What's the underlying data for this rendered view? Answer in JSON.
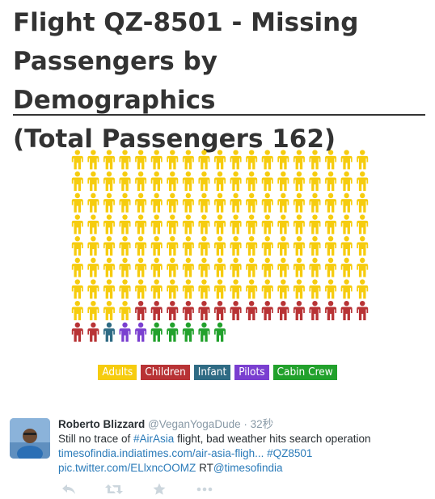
{
  "header": {
    "title_line1": "Flight QZ-8501 - Missing",
    "title_line2": "Passengers by Demographics",
    "title_line3": "(Total Passengers 162)"
  },
  "chart_data": {
    "type": "table",
    "categories": [
      "Adults",
      "Children",
      "Infant",
      "Pilots",
      "Cabin Crew"
    ],
    "values": [
      137,
      17,
      1,
      2,
      5
    ],
    "colors": [
      "#f6cc0e",
      "#b83335",
      "#2f6b84",
      "#7a3fd0",
      "#22a12c"
    ],
    "columns": 19
  },
  "legend": [
    {
      "label": "Adults",
      "color": "#f6cc0e"
    },
    {
      "label": "Children",
      "color": "#b83335"
    },
    {
      "label": "Infant",
      "color": "#2f6b84"
    },
    {
      "label": "Pilots",
      "color": "#7a3fd0"
    },
    {
      "label": "Cabin Crew",
      "color": "#22a12c"
    }
  ],
  "tweet": {
    "name": "Roberto Blizzard",
    "handle": "@VeganYogaDude",
    "separator": "·",
    "time": "32秒",
    "line1_prefix": "Still no trace of ",
    "line1_hashtag": "#AirAsia",
    "line1_suffix": " flight, bad weather hits search operation",
    "line2_link": "timesofindia.indiatimes.com/air-asia-fligh...",
    "line2_hashtag": "#QZ8501",
    "line3_pic": "pic.twitter.com/ELlxncOOMZ",
    "line3_rt": "RT",
    "line3_mention": "@timesofindia",
    "icons": [
      "reply-icon",
      "retweet-icon",
      "favorite-icon",
      "more-icon"
    ]
  }
}
